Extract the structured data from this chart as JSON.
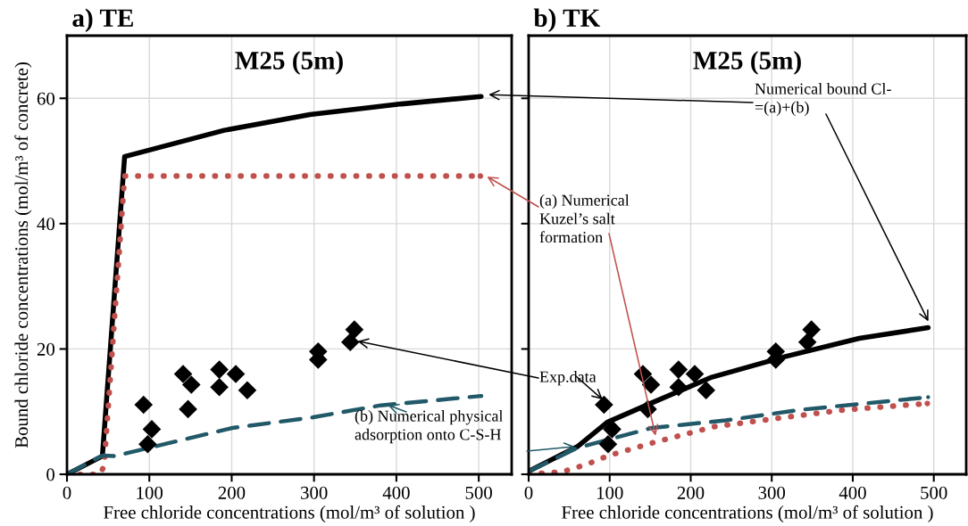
{
  "chart_data": [
    {
      "type": "line",
      "title": "a) TE",
      "subtitle": "M25 (5m)",
      "xlabel": "Free chloride concentrations (mol/m³ of solution )",
      "ylabel": "Bound chloride concentrations (mol/m³ of concrete)",
      "xlim": [
        0,
        540
      ],
      "xticks": [
        0,
        100,
        200,
        300,
        400,
        500
      ],
      "ylim": [
        0,
        70
      ],
      "yticks": [
        0,
        20,
        40,
        60
      ],
      "grid": true,
      "legend": false,
      "annotations": [
        "Numerical bound Cl-\n=(a)+(b)",
        "(a) Numerical\nKuzel’s salt\nformation",
        "Exp.data",
        "(b) Numerical physical\nadsorption onto C-S-H"
      ],
      "series": [
        {
          "line_style": "solid",
          "color": "#000000",
          "x": [
            0,
            43,
            70,
            191,
            295,
            406,
            503
          ],
          "values": [
            0,
            2.9,
            50.7,
            54.9,
            57.4,
            59.1,
            60.3
          ]
        },
        {
          "line_style": "dotted",
          "color": "#c0504d",
          "x": [
            0,
            40,
            45,
            70,
            502
          ],
          "values": [
            0,
            0,
            1.3,
            47.6,
            47.6
          ]
        },
        {
          "line_style": "dashed",
          "color": "#215968",
          "x": [
            0,
            43,
            58,
            86,
            201,
            299,
            381,
            503
          ],
          "values": [
            0,
            3,
            2.9,
            3.8,
            7.4,
            9.1,
            11,
            12.5
          ]
        },
        {
          "type": "scatter",
          "marker": "diamond",
          "color": "#000000",
          "x": [
            93,
            103,
            98,
            141,
            151,
            147,
            185,
            185,
            205,
            219,
            305,
            305,
            349,
            344
          ],
          "values": [
            11.1,
            7.2,
            4.8,
            16.0,
            14.3,
            10.4,
            16.7,
            13.9,
            16.0,
            13.4,
            19.6,
            18.3,
            23.1,
            21.1
          ]
        }
      ]
    },
    {
      "type": "line",
      "title": "b) TK",
      "subtitle": "M25 (5m)",
      "xlabel": "Free chloride concentrations (mol/m³ of solution )",
      "xlim": [
        0,
        540
      ],
      "xticks": [
        0,
        100,
        200,
        300,
        400,
        500
      ],
      "ylim": [
        0,
        70
      ],
      "yticks": [
        0,
        20,
        40,
        60
      ],
      "tick_labels": "x",
      "grid": true,
      "legend": false,
      "series": [
        {
          "line_style": "solid",
          "color": "#000000",
          "x": [
            0,
            60,
            97,
            152,
            226,
            317,
            408,
            493
          ],
          "values": [
            0.5,
            4.4,
            8.3,
            11.4,
            15.5,
            18.8,
            21.7,
            23.4
          ]
        },
        {
          "line_style": "dotted",
          "color": "#c0504d",
          "x": [
            0,
            42,
            72,
            99,
            155,
            229,
            317,
            391,
            492
          ],
          "values": [
            0,
            0.4,
            1.6,
            3,
            5.1,
            7.6,
            9.1,
            10.3,
            11.3
          ]
        },
        {
          "line_style": "dashed",
          "color": "#215968",
          "x": [
            0,
            60,
            152,
            243,
            336,
            493
          ],
          "values": [
            0.5,
            4.2,
            7.4,
            8.6,
            10.3,
            12.3
          ]
        },
        {
          "type": "scatter",
          "marker": "diamond",
          "color": "#000000",
          "x": [
            93,
            103,
            98,
            141,
            151,
            147,
            185,
            185,
            205,
            219,
            305,
            305,
            349,
            344
          ],
          "values": [
            11.1,
            7.2,
            4.8,
            16.0,
            14.3,
            10.4,
            16.7,
            13.9,
            16.0,
            13.4,
            19.6,
            18.3,
            23.1,
            21.1
          ]
        }
      ]
    }
  ]
}
